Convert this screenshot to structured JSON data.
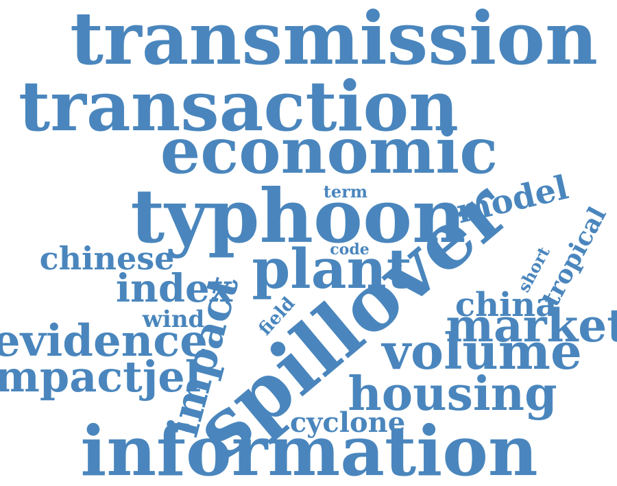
{
  "word_color": "#4a86bd",
  "words": [
    "transmission",
    "transaction",
    "economic",
    "typhoon",
    "term",
    "model",
    "chinese",
    "code",
    "plant",
    "index",
    "impact",
    "tropical",
    "short",
    "china",
    "wind",
    "field",
    "spillover",
    "market",
    "evidence",
    "volume",
    "impactjel",
    "housing",
    "cyclone",
    "information"
  ]
}
